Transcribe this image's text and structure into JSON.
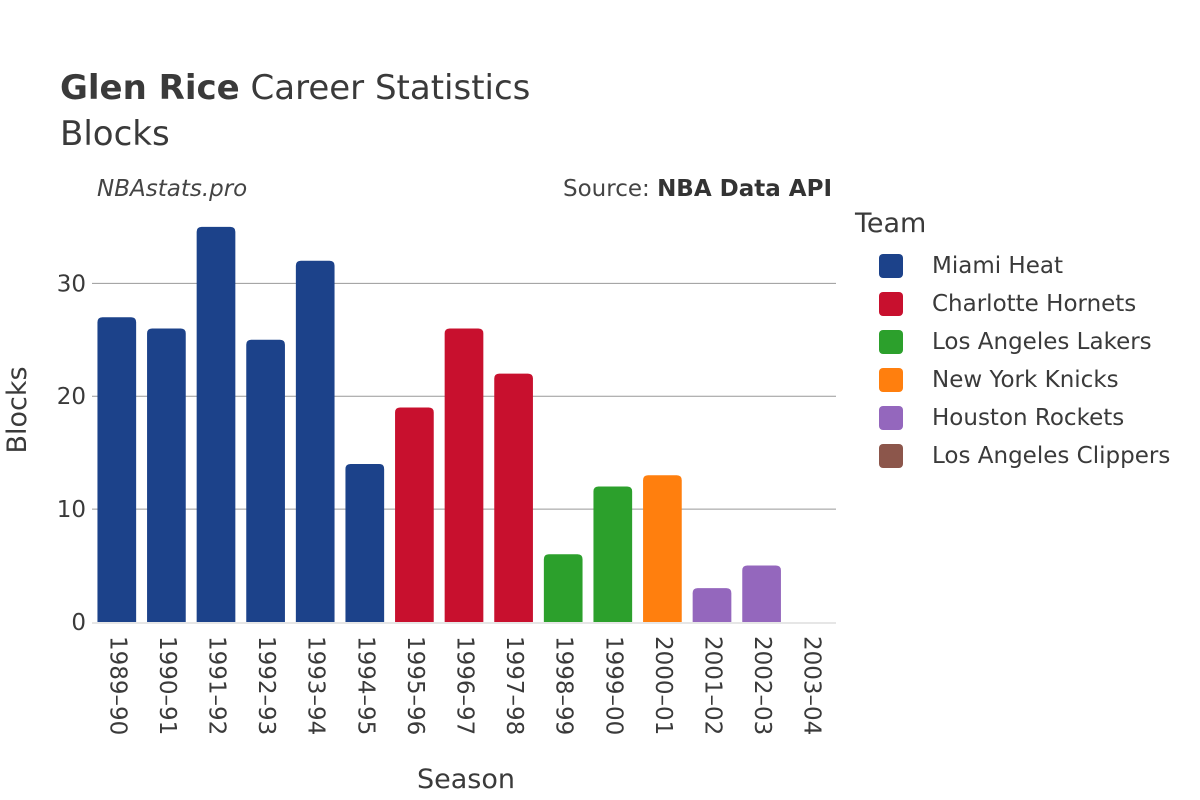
{
  "header": {
    "title_bold": "Glen Rice",
    "title_rest": " Career Statistics",
    "subtitle": "Blocks",
    "site": "NBAstats.pro",
    "source_prefix": "Source: ",
    "source_name": "NBA Data API"
  },
  "legend": {
    "title": "Team",
    "items": [
      {
        "label": "Miami Heat",
        "color": "#1c428a"
      },
      {
        "label": "Charlotte Hornets",
        "color": "#c8102e"
      },
      {
        "label": "Los Angeles Lakers",
        "color": "#2ca02c"
      },
      {
        "label": "New York Knicks",
        "color": "#ff7f0e"
      },
      {
        "label": "Houston Rockets",
        "color": "#9467bd"
      },
      {
        "label": "Los Angeles Clippers",
        "color": "#8c564b"
      }
    ]
  },
  "chart_data": {
    "type": "bar",
    "xlabel": "Season",
    "ylabel": "Blocks",
    "ylim": [
      0,
      36.5
    ],
    "yticks": [
      0,
      10,
      20,
      30
    ],
    "grid": true,
    "legend_position": "right",
    "categories": [
      "1989–90",
      "1990–91",
      "1991–92",
      "1992–93",
      "1993–94",
      "1994–95",
      "1995–96",
      "1996–97",
      "1997–98",
      "1998–99",
      "1999–00",
      "2000–01",
      "2001–02",
      "2002–03",
      "2003–04"
    ],
    "values": [
      27,
      26,
      35,
      25,
      32,
      14,
      19,
      26,
      22,
      6,
      12,
      13,
      3,
      5,
      0
    ],
    "teams": [
      "Miami Heat",
      "Miami Heat",
      "Miami Heat",
      "Miami Heat",
      "Miami Heat",
      "Miami Heat",
      "Charlotte Hornets",
      "Charlotte Hornets",
      "Charlotte Hornets",
      "Los Angeles Lakers",
      "Los Angeles Lakers",
      "New York Knicks",
      "Houston Rockets",
      "Houston Rockets",
      "Los Angeles Clippers"
    ]
  }
}
